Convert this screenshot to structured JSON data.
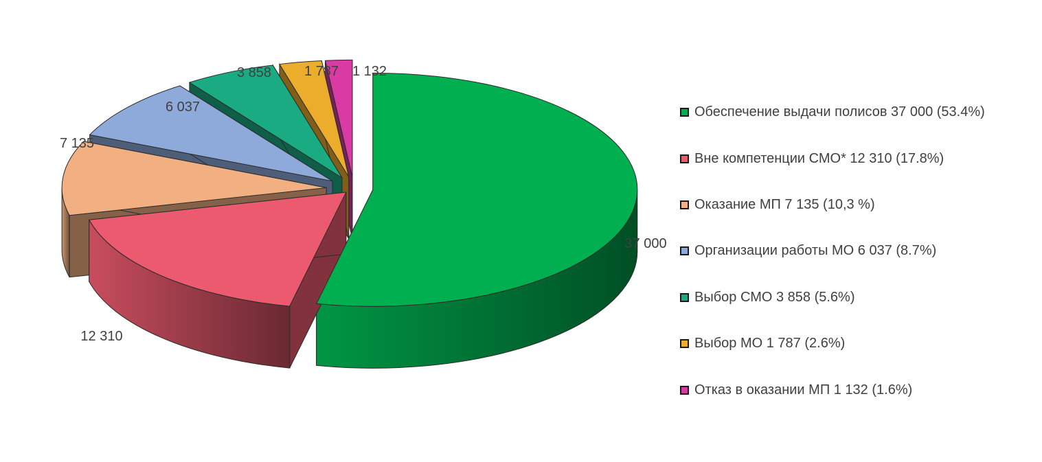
{
  "chart_data": {
    "type": "pie",
    "title": "",
    "categories": [
      "Обеспечение выдачи полисов",
      "Вне компетенции СМО*",
      "Оказание МП",
      "Организации работы МО",
      "Выбор СМО",
      "Выбор МО",
      "Отказ в оказании МП"
    ],
    "values": [
      37000,
      12310,
      7135,
      6037,
      3858,
      1787,
      1132
    ],
    "data_labels": [
      "37 000",
      "12 310",
      "7 135",
      "6 037",
      "3 858",
      "1 787",
      "1 132"
    ],
    "colors": [
      "#00b050",
      "#eb5a6e",
      "#f2b082",
      "#8eaadb",
      "#1bab83",
      "#ecac2c",
      "#d93aa4"
    ],
    "legend_position": "right",
    "style": "3d-exploded"
  },
  "legend": {
    "items": [
      {
        "label": "Обеспечение выдачи полисов 37 000 (53.4%)",
        "color": "#00b050"
      },
      {
        "label": "Вне компетенции СМО*  12 310 (17.8%)",
        "color": "#eb5a6e"
      },
      {
        "label": "Оказание МП 7 135 (10,3 %)",
        "color": "#f2b082"
      },
      {
        "label": "Организации работы МО 6 037 (8.7%)",
        "color": "#8eaadb"
      },
      {
        "label": "Выбор СМО 3 858 (5.6%)",
        "color": "#1bab83"
      },
      {
        "label": "Выбор МО 1 787 (2.6%)",
        "color": "#ecac2c"
      },
      {
        "label": "Отказ в оказании МП 1 132 (1.6%)",
        "color": "#d93aa4"
      }
    ]
  }
}
